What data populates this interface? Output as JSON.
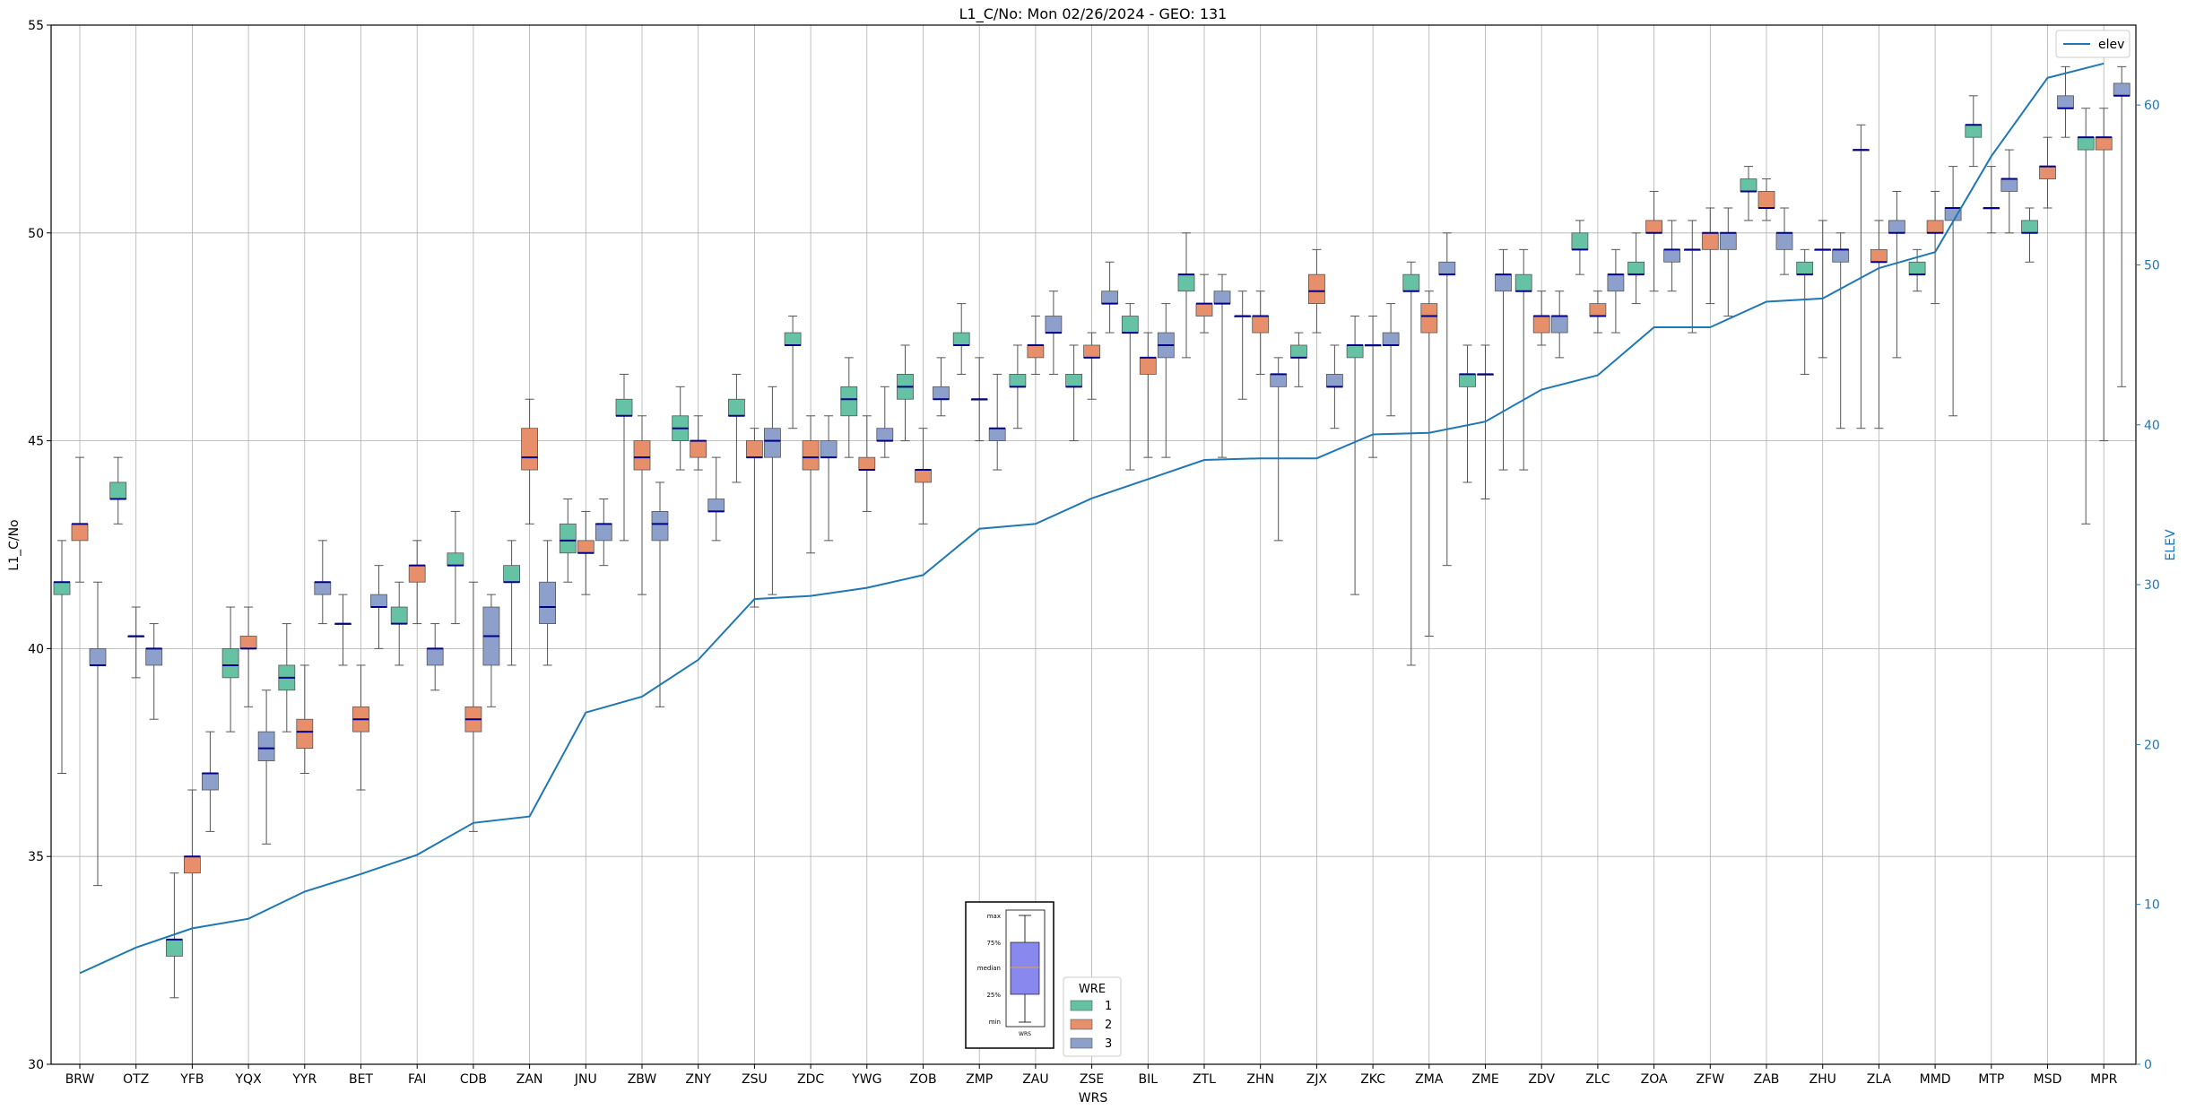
{
  "chart_data": {
    "type": "box",
    "title": "L1_C/No: Mon 02/26/2024 - GEO: 131",
    "xlabel": "WRS",
    "ylabel": "L1_C/No",
    "y2label": "ELEV",
    "ylim": [
      30,
      55
    ],
    "y2lim": [
      0,
      65
    ],
    "yticks": [
      30,
      35,
      40,
      45,
      50,
      55
    ],
    "y2ticks": [
      0,
      10,
      20,
      30,
      40,
      50,
      60
    ],
    "grid": true,
    "categories": [
      "BRW",
      "OTZ",
      "YFB",
      "YQX",
      "YYR",
      "BET",
      "FAI",
      "CDB",
      "ZAN",
      "JNU",
      "ZBW",
      "ZNY",
      "ZSU",
      "ZDC",
      "YWG",
      "ZOB",
      "ZMP",
      "ZAU",
      "ZSE",
      "BIL",
      "ZTL",
      "ZHN",
      "ZJX",
      "ZKC",
      "ZMA",
      "ZME",
      "ZDV",
      "ZLC",
      "ZOA",
      "ZFW",
      "ZAB",
      "ZHU",
      "ZLA",
      "MMD",
      "MTP",
      "MSD",
      "MPR"
    ],
    "series": [
      {
        "name": "1",
        "color": "#66c2a5",
        "boxes": [
          {
            "min": 37.0,
            "q1": 41.3,
            "median": 41.6,
            "q3": 41.6,
            "max": 42.6
          },
          {
            "min": 43.0,
            "q1": 43.6,
            "median": 43.6,
            "q3": 44.0,
            "max": 44.6
          },
          {
            "min": 31.6,
            "q1": 32.6,
            "median": 33.0,
            "q3": 33.0,
            "max": 34.6
          },
          {
            "min": 38.0,
            "q1": 39.3,
            "median": 39.6,
            "q3": 40.0,
            "max": 41.0
          },
          {
            "min": 38.0,
            "q1": 39.0,
            "median": 39.3,
            "q3": 39.6,
            "max": 40.6
          },
          {
            "min": 39.6,
            "q1": 40.6,
            "median": 40.6,
            "q3": 40.6,
            "max": 41.3
          },
          {
            "min": 39.6,
            "q1": 40.6,
            "median": 40.6,
            "q3": 41.0,
            "max": 41.6
          },
          {
            "min": 40.6,
            "q1": 42.0,
            "median": 42.0,
            "q3": 42.3,
            "max": 43.3
          },
          {
            "min": 39.6,
            "q1": 41.6,
            "median": 41.6,
            "q3": 42.0,
            "max": 42.6
          },
          {
            "min": 41.6,
            "q1": 42.3,
            "median": 42.6,
            "q3": 43.0,
            "max": 43.6
          },
          {
            "min": 42.6,
            "q1": 45.6,
            "median": 45.6,
            "q3": 46.0,
            "max": 46.6
          },
          {
            "min": 44.3,
            "q1": 45.0,
            "median": 45.3,
            "q3": 45.6,
            "max": 46.3
          },
          {
            "min": 44.0,
            "q1": 45.6,
            "median": 45.6,
            "q3": 46.0,
            "max": 46.6
          },
          {
            "min": 45.3,
            "q1": 47.3,
            "median": 47.3,
            "q3": 47.6,
            "max": 48.0
          },
          {
            "min": 44.6,
            "q1": 45.6,
            "median": 46.0,
            "q3": 46.3,
            "max": 47.0
          },
          {
            "min": 45.0,
            "q1": 46.0,
            "median": 46.3,
            "q3": 46.6,
            "max": 47.3
          },
          {
            "min": 46.6,
            "q1": 47.3,
            "median": 47.3,
            "q3": 47.6,
            "max": 48.3
          },
          {
            "min": 45.3,
            "q1": 46.3,
            "median": 46.3,
            "q3": 46.6,
            "max": 47.3
          },
          {
            "min": 45.0,
            "q1": 46.3,
            "median": 46.3,
            "q3": 46.6,
            "max": 47.3
          },
          {
            "min": 44.3,
            "q1": 47.6,
            "median": 47.6,
            "q3": 48.0,
            "max": 48.3
          },
          {
            "min": 47.0,
            "q1": 48.6,
            "median": 49.0,
            "q3": 49.0,
            "max": 50.0
          },
          {
            "min": 46.0,
            "q1": 48.0,
            "median": 48.0,
            "q3": 48.0,
            "max": 48.6
          },
          {
            "min": 46.3,
            "q1": 47.0,
            "median": 47.0,
            "q3": 47.3,
            "max": 47.6
          },
          {
            "min": 41.3,
            "q1": 47.0,
            "median": 47.3,
            "q3": 47.3,
            "max": 48.0
          },
          {
            "min": 39.6,
            "q1": 48.6,
            "median": 48.6,
            "q3": 49.0,
            "max": 49.3
          },
          {
            "min": 44.0,
            "q1": 46.3,
            "median": 46.6,
            "q3": 46.6,
            "max": 47.3
          },
          {
            "min": 44.3,
            "q1": 48.6,
            "median": 48.6,
            "q3": 49.0,
            "max": 49.6
          },
          {
            "min": 49.0,
            "q1": 49.6,
            "median": 49.6,
            "q3": 50.0,
            "max": 50.3
          },
          {
            "min": 48.3,
            "q1": 49.0,
            "median": 49.0,
            "q3": 49.3,
            "max": 50.0
          },
          {
            "min": 47.6,
            "q1": 49.6,
            "median": 49.6,
            "q3": 49.6,
            "max": 50.3
          },
          {
            "min": 50.3,
            "q1": 51.0,
            "median": 51.0,
            "q3": 51.3,
            "max": 51.6
          },
          {
            "min": 46.6,
            "q1": 49.0,
            "median": 49.0,
            "q3": 49.3,
            "max": 49.6
          },
          {
            "min": 45.3,
            "q1": 52.0,
            "median": 52.0,
            "q3": 52.0,
            "max": 52.6
          },
          {
            "min": 48.6,
            "q1": 49.0,
            "median": 49.0,
            "q3": 49.3,
            "max": 49.6
          },
          {
            "min": 51.6,
            "q1": 52.3,
            "median": 52.6,
            "q3": 52.6,
            "max": 53.3
          },
          {
            "min": 49.3,
            "q1": 50.0,
            "median": 50.0,
            "q3": 50.3,
            "max": 50.6
          },
          {
            "min": 43.0,
            "q1": 52.0,
            "median": 52.3,
            "q3": 52.3,
            "max": 53.0
          }
        ]
      },
      {
        "name": "2",
        "color": "#e78f6a",
        "boxes": [
          {
            "min": 41.6,
            "q1": 42.6,
            "median": 43.0,
            "q3": 43.0,
            "max": 44.6
          },
          {
            "min": 39.3,
            "q1": 40.3,
            "median": 40.3,
            "q3": 40.3,
            "max": 41.0
          },
          {
            "min": 30.0,
            "q1": 34.6,
            "median": 35.0,
            "q3": 35.0,
            "max": 36.6
          },
          {
            "min": 38.6,
            "q1": 40.0,
            "median": 40.0,
            "q3": 40.3,
            "max": 41.0
          },
          {
            "min": 37.0,
            "q1": 37.6,
            "median": 38.0,
            "q3": 38.3,
            "max": 39.6
          },
          {
            "min": 36.6,
            "q1": 38.0,
            "median": 38.3,
            "q3": 38.6,
            "max": 39.6
          },
          {
            "min": 40.6,
            "q1": 41.6,
            "median": 42.0,
            "q3": 42.0,
            "max": 42.6
          },
          {
            "min": 35.6,
            "q1": 38.0,
            "median": 38.3,
            "q3": 38.6,
            "max": 41.6
          },
          {
            "min": 43.0,
            "q1": 44.3,
            "median": 44.6,
            "q3": 45.3,
            "max": 46.0
          },
          {
            "min": 41.3,
            "q1": 42.3,
            "median": 42.3,
            "q3": 42.6,
            "max": 43.3
          },
          {
            "min": 41.3,
            "q1": 44.3,
            "median": 44.6,
            "q3": 45.0,
            "max": 45.6
          },
          {
            "min": 44.3,
            "q1": 44.6,
            "median": 45.0,
            "q3": 45.0,
            "max": 45.6
          },
          {
            "min": 41.0,
            "q1": 44.6,
            "median": 44.6,
            "q3": 45.0,
            "max": 45.3
          },
          {
            "min": 42.3,
            "q1": 44.3,
            "median": 44.6,
            "q3": 45.0,
            "max": 45.6
          },
          {
            "min": 43.3,
            "q1": 44.3,
            "median": 44.3,
            "q3": 44.6,
            "max": 45.6
          },
          {
            "min": 43.0,
            "q1": 44.0,
            "median": 44.3,
            "q3": 44.3,
            "max": 45.3
          },
          {
            "min": 45.0,
            "q1": 46.0,
            "median": 46.0,
            "q3": 46.0,
            "max": 47.0
          },
          {
            "min": 46.6,
            "q1": 47.0,
            "median": 47.3,
            "q3": 47.3,
            "max": 48.0
          },
          {
            "min": 46.0,
            "q1": 47.0,
            "median": 47.0,
            "q3": 47.3,
            "max": 47.6
          },
          {
            "min": 44.6,
            "q1": 46.6,
            "median": 47.0,
            "q3": 47.0,
            "max": 47.6
          },
          {
            "min": 47.6,
            "q1": 48.0,
            "median": 48.3,
            "q3": 48.3,
            "max": 49.0
          },
          {
            "min": 46.6,
            "q1": 47.6,
            "median": 48.0,
            "q3": 48.0,
            "max": 48.6
          },
          {
            "min": 47.6,
            "q1": 48.3,
            "median": 48.6,
            "q3": 49.0,
            "max": 49.6
          },
          {
            "min": 44.6,
            "q1": 47.3,
            "median": 47.3,
            "q3": 47.3,
            "max": 48.0
          },
          {
            "min": 40.3,
            "q1": 47.6,
            "median": 48.0,
            "q3": 48.3,
            "max": 48.6
          },
          {
            "min": 43.6,
            "q1": 46.6,
            "median": 46.6,
            "q3": 46.6,
            "max": 47.3
          },
          {
            "min": 47.3,
            "q1": 47.6,
            "median": 48.0,
            "q3": 48.0,
            "max": 48.6
          },
          {
            "min": 47.6,
            "q1": 48.0,
            "median": 48.0,
            "q3": 48.3,
            "max": 48.6
          },
          {
            "min": 48.6,
            "q1": 50.0,
            "median": 50.0,
            "q3": 50.3,
            "max": 51.0
          },
          {
            "min": 48.3,
            "q1": 49.6,
            "median": 50.0,
            "q3": 50.0,
            "max": 50.6
          },
          {
            "min": 50.3,
            "q1": 50.6,
            "median": 50.6,
            "q3": 51.0,
            "max": 51.3
          },
          {
            "min": 47.0,
            "q1": 49.6,
            "median": 49.6,
            "q3": 49.6,
            "max": 50.3
          },
          {
            "min": 45.3,
            "q1": 49.3,
            "median": 49.3,
            "q3": 49.6,
            "max": 50.3
          },
          {
            "min": 48.3,
            "q1": 50.0,
            "median": 50.0,
            "q3": 50.3,
            "max": 51.0
          },
          {
            "min": 50.0,
            "q1": 50.6,
            "median": 50.6,
            "q3": 50.6,
            "max": 51.6
          },
          {
            "min": 50.6,
            "q1": 51.3,
            "median": 51.6,
            "q3": 51.6,
            "max": 52.3
          },
          {
            "min": 45.0,
            "q1": 52.0,
            "median": 52.3,
            "q3": 52.3,
            "max": 53.0
          }
        ]
      },
      {
        "name": "3",
        "color": "#8da0cb",
        "boxes": [
          {
            "min": 34.3,
            "q1": 39.6,
            "median": 39.6,
            "q3": 40.0,
            "max": 41.6
          },
          {
            "min": 38.3,
            "q1": 39.6,
            "median": 40.0,
            "q3": 40.0,
            "max": 40.6
          },
          {
            "min": 35.6,
            "q1": 36.6,
            "median": 37.0,
            "q3": 37.0,
            "max": 38.0
          },
          {
            "min": 35.3,
            "q1": 37.3,
            "median": 37.6,
            "q3": 38.0,
            "max": 39.0
          },
          {
            "min": 40.6,
            "q1": 41.3,
            "median": 41.6,
            "q3": 41.6,
            "max": 42.6
          },
          {
            "min": 40.0,
            "q1": 41.0,
            "median": 41.0,
            "q3": 41.3,
            "max": 42.0
          },
          {
            "min": 39.0,
            "q1": 39.6,
            "median": 40.0,
            "q3": 40.0,
            "max": 40.6
          },
          {
            "min": 38.6,
            "q1": 39.6,
            "median": 40.3,
            "q3": 41.0,
            "max": 41.3
          },
          {
            "min": 39.6,
            "q1": 40.6,
            "median": 41.0,
            "q3": 41.6,
            "max": 42.6
          },
          {
            "min": 42.0,
            "q1": 42.6,
            "median": 43.0,
            "q3": 43.0,
            "max": 43.6
          },
          {
            "min": 38.6,
            "q1": 42.6,
            "median": 43.0,
            "q3": 43.3,
            "max": 44.0
          },
          {
            "min": 42.6,
            "q1": 43.3,
            "median": 43.3,
            "q3": 43.6,
            "max": 44.6
          },
          {
            "min": 41.3,
            "q1": 44.6,
            "median": 45.0,
            "q3": 45.3,
            "max": 46.3
          },
          {
            "min": 42.6,
            "q1": 44.6,
            "median": 44.6,
            "q3": 45.0,
            "max": 45.6
          },
          {
            "min": 44.6,
            "q1": 45.0,
            "median": 45.0,
            "q3": 45.3,
            "max": 46.3
          },
          {
            "min": 45.6,
            "q1": 46.0,
            "median": 46.0,
            "q3": 46.3,
            "max": 47.0
          },
          {
            "min": 44.3,
            "q1": 45.0,
            "median": 45.3,
            "q3": 45.3,
            "max": 46.6
          },
          {
            "min": 46.6,
            "q1": 47.6,
            "median": 47.6,
            "q3": 48.0,
            "max": 48.6
          },
          {
            "min": 47.6,
            "q1": 48.3,
            "median": 48.3,
            "q3": 48.6,
            "max": 49.3
          },
          {
            "min": 44.6,
            "q1": 47.0,
            "median": 47.3,
            "q3": 47.6,
            "max": 48.3
          },
          {
            "min": 44.6,
            "q1": 48.3,
            "median": 48.3,
            "q3": 48.6,
            "max": 49.0
          },
          {
            "min": 42.6,
            "q1": 46.3,
            "median": 46.6,
            "q3": 46.6,
            "max": 47.0
          },
          {
            "min": 45.3,
            "q1": 46.3,
            "median": 46.3,
            "q3": 46.6,
            "max": 47.3
          },
          {
            "min": 45.6,
            "q1": 47.3,
            "median": 47.3,
            "q3": 47.6,
            "max": 48.3
          },
          {
            "min": 42.0,
            "q1": 49.0,
            "median": 49.0,
            "q3": 49.3,
            "max": 50.0
          },
          {
            "min": 44.3,
            "q1": 48.6,
            "median": 49.0,
            "q3": 49.0,
            "max": 49.6
          },
          {
            "min": 47.0,
            "q1": 47.6,
            "median": 48.0,
            "q3": 48.0,
            "max": 48.6
          },
          {
            "min": 47.6,
            "q1": 48.6,
            "median": 49.0,
            "q3": 49.0,
            "max": 49.6
          },
          {
            "min": 48.6,
            "q1": 49.3,
            "median": 49.6,
            "q3": 49.6,
            "max": 50.3
          },
          {
            "min": 48.0,
            "q1": 49.6,
            "median": 50.0,
            "q3": 50.0,
            "max": 50.6
          },
          {
            "min": 49.0,
            "q1": 49.6,
            "median": 50.0,
            "q3": 50.0,
            "max": 50.6
          },
          {
            "min": 45.3,
            "q1": 49.3,
            "median": 49.6,
            "q3": 49.6,
            "max": 50.0
          },
          {
            "min": 47.0,
            "q1": 50.0,
            "median": 50.0,
            "q3": 50.3,
            "max": 51.0
          },
          {
            "min": 45.6,
            "q1": 50.3,
            "median": 50.6,
            "q3": 50.6,
            "max": 51.6
          },
          {
            "min": 50.0,
            "q1": 51.0,
            "median": 51.3,
            "q3": 51.3,
            "max": 52.0
          },
          {
            "min": 52.3,
            "q1": 53.0,
            "median": 53.0,
            "q3": 53.3,
            "max": 54.0
          },
          {
            "min": 46.3,
            "q1": 53.3,
            "median": 53.3,
            "q3": 53.6,
            "max": 54.0
          }
        ]
      }
    ],
    "elev": {
      "name": "elev",
      "color": "#1f77b4",
      "values": [
        5.7,
        7.3,
        8.5,
        9.1,
        10.8,
        11.9,
        13.1,
        15.1,
        15.5,
        22.0,
        23.0,
        25.3,
        29.1,
        29.3,
        29.8,
        30.6,
        33.5,
        33.8,
        35.4,
        36.6,
        37.8,
        37.9,
        37.9,
        39.4,
        39.5,
        40.2,
        42.2,
        43.1,
        46.1,
        46.1,
        47.7,
        47.9,
        49.8,
        50.8,
        56.8,
        61.7,
        62.6
      ]
    },
    "legend_box": {
      "title": "WRE",
      "placement": "bottom-center",
      "entries": [
        "1",
        "2",
        "3"
      ]
    },
    "legend_line": {
      "placement": "top-right",
      "entries": [
        "elev"
      ]
    },
    "inset": {
      "labels": [
        "max",
        "75%",
        "median",
        "25%",
        "min"
      ],
      "xlabel": "WRS"
    }
  }
}
